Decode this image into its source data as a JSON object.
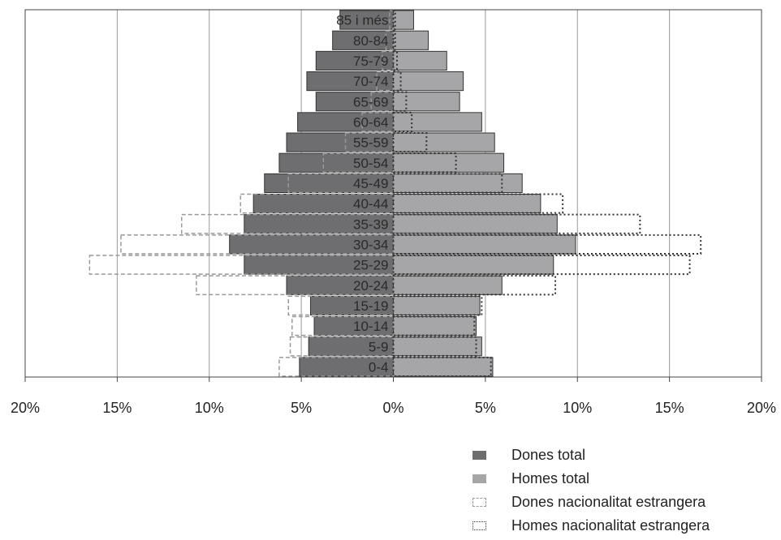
{
  "chart_data": {
    "type": "bar",
    "orientation": "horizontal-population-pyramid",
    "categories": [
      "0-4",
      "5-9",
      "10-14",
      "15-19",
      "20-24",
      "25-29",
      "30-34",
      "35-39",
      "40-44",
      "45-49",
      "50-54",
      "55-59",
      "60-64",
      "65-69",
      "70-74",
      "75-79",
      "80-84",
      "85 i més"
    ],
    "series": [
      {
        "name": "Dones total",
        "side": "left",
        "color": "#6e6e70",
        "values": [
          5.1,
          4.6,
          4.3,
          4.5,
          5.8,
          8.1,
          8.9,
          8.1,
          7.6,
          7.0,
          6.2,
          5.8,
          5.2,
          4.2,
          4.7,
          4.2,
          3.3,
          2.9
        ]
      },
      {
        "name": "Homes total",
        "side": "right",
        "color": "#a6a6a8",
        "values": [
          5.4,
          4.8,
          4.5,
          4.7,
          5.9,
          8.7,
          9.9,
          8.9,
          8.0,
          7.0,
          6.0,
          5.5,
          4.8,
          3.6,
          3.8,
          2.9,
          1.9,
          1.1
        ]
      },
      {
        "name": "Dones nacionalitat estrangera",
        "side": "left",
        "color": "#999999",
        "values": [
          6.2,
          5.6,
          5.5,
          5.7,
          10.7,
          16.5,
          14.8,
          11.5,
          8.3,
          5.7,
          3.8,
          2.6,
          1.7,
          1.2,
          0.9,
          0.6,
          0.4,
          0.2
        ]
      },
      {
        "name": "Homes nacionalitat estrangera",
        "side": "right",
        "color": "#333333",
        "values": [
          5.3,
          4.5,
          4.4,
          4.8,
          8.8,
          16.1,
          16.7,
          13.4,
          9.2,
          5.9,
          3.4,
          1.8,
          1.0,
          0.7,
          0.4,
          0.2,
          0.1,
          0.1
        ]
      }
    ],
    "x_ticks": [
      "20%",
      "15%",
      "10%",
      "5%",
      "0%",
      "5%",
      "10%",
      "15%",
      "20%"
    ],
    "xlim": [
      -20,
      20
    ],
    "grid": true,
    "legend_position": "bottom-right"
  },
  "legend": {
    "items": [
      {
        "label": "Dones total",
        "swatch": "dones-total"
      },
      {
        "label": "Homes total",
        "swatch": "homes-total"
      },
      {
        "label": "Dones nacionalitat estrangera",
        "swatch": "dones-estrangera"
      },
      {
        "label": "Homes nacionalitat estrangera",
        "swatch": "homes-estrangera"
      }
    ]
  }
}
